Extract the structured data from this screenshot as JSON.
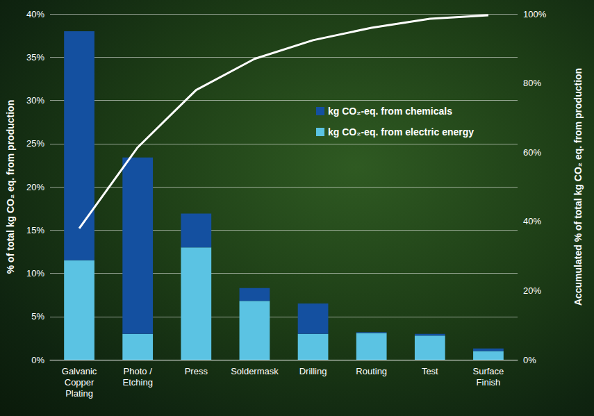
{
  "chart_data": {
    "type": "bar",
    "stacked": true,
    "grid": true,
    "legend": "right",
    "y_label": "% of total kg CO₂ eq. from production",
    "y2_label": "Accumulated % of total kg CO₂ eq. from production",
    "categories": [
      "Galvanic Copper Plating",
      "Photo / Etching",
      "Press",
      "Soldermask",
      "Drilling",
      "Routing",
      "Test",
      "Surface Finish"
    ],
    "series": [
      {
        "name": "kg CO₂-eq. from chemicals",
        "color": "#1450a0",
        "values": [
          26.5,
          20.4,
          3.9,
          1.5,
          3.5,
          0.1,
          0.2,
          0.3
        ]
      },
      {
        "name": "kg CO₂-eq. from electric energy",
        "color": "#5bc3e3",
        "values": [
          11.5,
          3.0,
          13.0,
          6.8,
          3.0,
          3.1,
          2.8,
          1.0
        ]
      },
      {
        "type": "line",
        "axis": "y2",
        "color": "#ffffff",
        "values": [
          38,
          61.4,
          78,
          87,
          92.4,
          96,
          98.6,
          99.6
        ]
      }
    ],
    "ylim": [
      0,
      40
    ],
    "yticks": [
      {
        "value": 0,
        "label": "0%"
      },
      {
        "value": 5,
        "label": "5%"
      },
      {
        "value": 10,
        "label": "10%"
      },
      {
        "value": 15,
        "label": "15%"
      },
      {
        "value": 20,
        "label": "20%"
      },
      {
        "value": 25,
        "label": "25%"
      },
      {
        "value": 30,
        "label": "30%"
      },
      {
        "value": 35,
        "label": "35%"
      },
      {
        "value": 40,
        "label": "40%"
      }
    ],
    "y2lim": [
      0,
      100
    ],
    "y2ticks": [
      {
        "value": 0,
        "label": "0%"
      },
      {
        "value": 20,
        "label": "20%"
      },
      {
        "value": 40,
        "label": "40%"
      },
      {
        "value": 60,
        "label": "60%"
      },
      {
        "value": 80,
        "label": "80%"
      },
      {
        "value": 100,
        "label": "100%"
      }
    ]
  }
}
